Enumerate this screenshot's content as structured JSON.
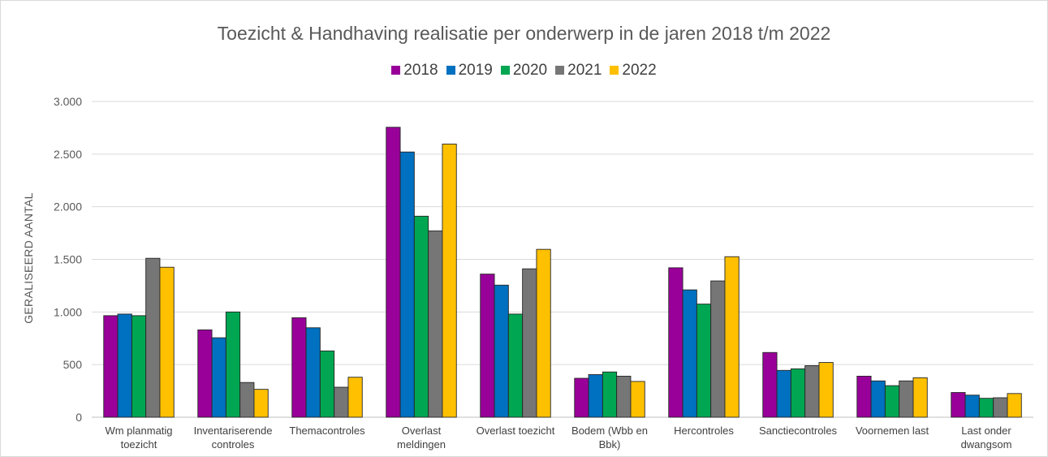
{
  "chart_data": {
    "type": "bar",
    "title": "Toezicht & Handhaving realisatie per onderwerp in de jaren 2018 t/m 2022",
    "ylabel": "GERALISEERD AANTAL",
    "xlabel": "",
    "ylim": [
      0,
      3000
    ],
    "yticks": [
      0,
      500,
      1000,
      1500,
      2000,
      2500,
      3000
    ],
    "ytick_labels": [
      "0",
      "500",
      "1.000",
      "1.500",
      "2.000",
      "2.500",
      "3.000"
    ],
    "grid": "horizontal",
    "legend": "top-center",
    "categories": [
      [
        "Wm planmatig",
        "toezicht"
      ],
      [
        "Inventariserende",
        "controles"
      ],
      [
        "Themacontroles"
      ],
      [
        "Overlast",
        "meldingen"
      ],
      [
        "Overlast toezicht"
      ],
      [
        "Bodem (Wbb en",
        "Bbk)"
      ],
      [
        "Hercontroles"
      ],
      [
        "Sanctiecontroles"
      ],
      [
        "Voornemen last"
      ],
      [
        "Last onder",
        "dwangsom"
      ]
    ],
    "series": [
      {
        "name": "2018",
        "color": "#990099",
        "values": [
          965,
          830,
          945,
          2755,
          1360,
          370,
          1420,
          615,
          390,
          235
        ]
      },
      {
        "name": "2019",
        "color": "#0070c0",
        "values": [
          980,
          755,
          850,
          2520,
          1255,
          405,
          1210,
          445,
          345,
          210
        ]
      },
      {
        "name": "2020",
        "color": "#00a651",
        "values": [
          965,
          1000,
          630,
          1910,
          980,
          430,
          1075,
          460,
          300,
          180
        ]
      },
      {
        "name": "2021",
        "color": "#767676",
        "values": [
          1510,
          330,
          285,
          1770,
          1410,
          390,
          1295,
          490,
          345,
          185
        ]
      },
      {
        "name": "2022",
        "color": "#ffc000",
        "values": [
          1425,
          265,
          380,
          2595,
          1595,
          340,
          1525,
          520,
          375,
          225
        ]
      }
    ]
  }
}
